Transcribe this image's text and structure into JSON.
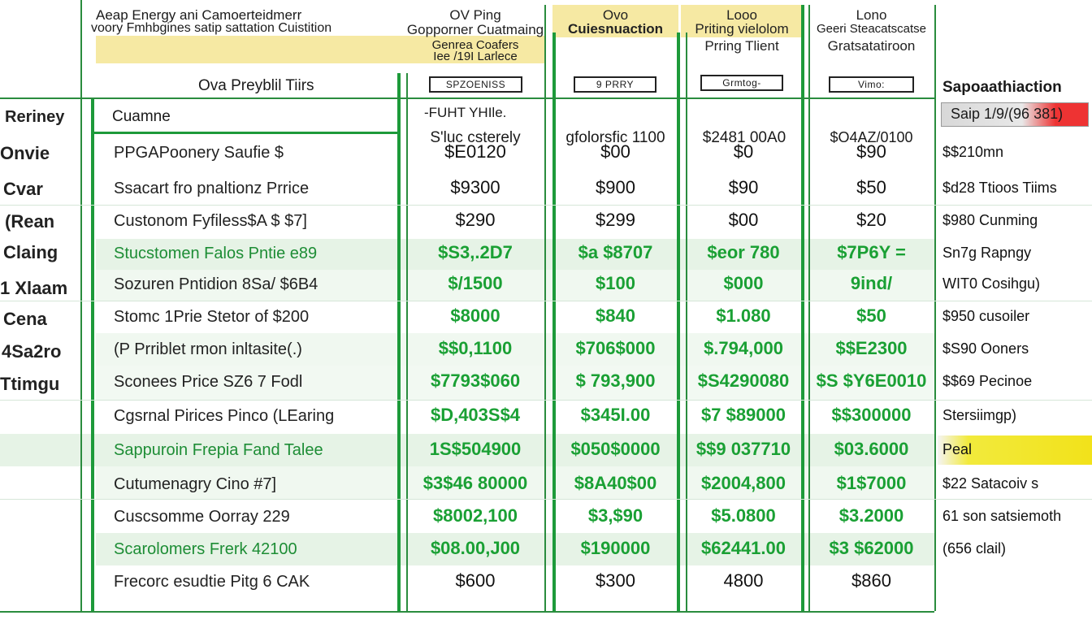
{
  "header": {
    "title_line1": "Aeap Energy ani Camoerteidmerr",
    "title_line2": "voory Fmhbgines satip sattation Cuistition",
    "col1_line1": "OV Ping",
    "col1_line2": "Gopporner Cuatmaing",
    "col1_sub1": "Genrea Coafers",
    "col1_sub2": "Iee /19I Larlece",
    "col2_line1": "Ovo",
    "col2_line2": "Cuiesnuaction",
    "col3_line1": "Looo",
    "col3_line2": "Priting vielolom",
    "col3_line3": "Prring Tlient",
    "col4_line1": "Lono",
    "col4_line2": "Geeri Steacatscatse",
    "col4_line3": "Gratsatatiroon",
    "section_title": "Ova Preyblil Tiirs",
    "right_title": "Sapoaathiaction",
    "right_badge": "Saip 1/9/(96 381)"
  },
  "boxes": [
    "SPZOENISS",
    "9 PRRY",
    "Grmtog-",
    "Vimo:"
  ],
  "subheader": {
    "left": "Reriney",
    "cuamne": "Cuamne",
    "fuht": "-FUHT YHIle.",
    "col1": "S'luc csterely",
    "col2": "gfolorsfic 1100",
    "col3": "$2481 00A0",
    "col4": "$O4AZ/0100"
  },
  "left_labels": [
    "Onvie",
    "Cvar",
    "(Rean",
    "Claing",
    "1 Xlaam",
    "Cena",
    "4Sa2ro",
    "Ttimgu"
  ],
  "rows": [
    {
      "label": "PPGAPoonery Saufie $",
      "green": false,
      "vals": [
        "$E0120",
        "$00",
        "$0",
        "$90"
      ],
      "vgreen": false,
      "right": "$$210mn"
    },
    {
      "label": "Ssacart fro pnaltionz Prrice",
      "green": false,
      "vals": [
        "$9300",
        "$900",
        "$90",
        "$50"
      ],
      "vgreen": false,
      "right": "$d28 Ttioos Tiims"
    },
    {
      "label": "Custonom Fyfiless$A $ $7]",
      "green": false,
      "vals": [
        "$290",
        "$299",
        "$00",
        "$20"
      ],
      "vgreen": false,
      "right": "$980 Cunming"
    },
    {
      "label": "Stucstomen Falos Pntie e89",
      "green": true,
      "vals": [
        "$S3,.2D7",
        "$a $8707",
        "$eor 780",
        "$7P6Y ="
      ],
      "vgreen": true,
      "right": "Sn7g Rapngy"
    },
    {
      "label": "Sozuren Pntidion 8Sa/ $6B4",
      "green": false,
      "vals": [
        "$/1500",
        "$100",
        "$000",
        "9ind/"
      ],
      "vgreen": true,
      "right": "WIT0 Cosihgu)"
    },
    {
      "label": "Stomc 1Prie Stetor of $200",
      "green": false,
      "vals": [
        "$8000",
        "$840",
        "$1.080",
        "$50"
      ],
      "vgreen": true,
      "right": "$950 cusoiler"
    },
    {
      "label": "(P Prriblet rmon inltasite(.)",
      "green": false,
      "vals": [
        "$$0,1100",
        "$706$000",
        "$.794,000",
        "$$E2300"
      ],
      "vgreen": true,
      "right": "$S90 Ooners"
    },
    {
      "label": "Sconees Price SZ6 7 Fodl",
      "green": false,
      "vals": [
        "$7793$060",
        "$ 793,900",
        "$S4290080",
        "$S $Y6E0010"
      ],
      "vgreen": true,
      "right": "$$69 Pecinoe"
    },
    {
      "label": "Cgsrnal Pirices Pinco (LEaring",
      "green": false,
      "vals": [
        "$D,403S$4",
        "$345I.00",
        "$7 $89000",
        "$$300000"
      ],
      "vgreen": true,
      "right": "Stersiimgp)"
    },
    {
      "label": "Sappuroin Frepia Fand Talee",
      "green": true,
      "vals": [
        "1S$504900",
        "$050$0000",
        "$$9 037710",
        "$03.6000"
      ],
      "vgreen": true,
      "right": "Peal"
    },
    {
      "label": "Cutumenagry Cino #7]",
      "green": false,
      "vals": [
        "$3$46 80000",
        "$8A40$00",
        "$2004,800",
        "$1$7000"
      ],
      "vgreen": true,
      "right": "$22 Satacoiv s"
    },
    {
      "label": "Cuscsomme Oorray 229",
      "green": false,
      "vals": [
        "$8002,100",
        "$3,$90",
        "$5.0800",
        "$3.2000"
      ],
      "vgreen": true,
      "right": "61 son satsiemoth"
    },
    {
      "label": "Scarolomers Frerk 42100",
      "green": true,
      "vals": [
        "$08.00,J00",
        "$190000",
        "$62441.00",
        "$3 $62000"
      ],
      "vgreen": true,
      "right": "(656 clail)"
    },
    {
      "label": "Frecorc esudtie Pitg 6 CAK",
      "green": false,
      "vals": [
        "$600",
        "$300",
        "4800",
        "$860"
      ],
      "vgreen": false,
      "right": ""
    }
  ],
  "colors": {
    "green": "#1d9a3a",
    "yellow": "#f6e9a3",
    "red": "#e33",
    "highlight": "#f2e21a"
  }
}
